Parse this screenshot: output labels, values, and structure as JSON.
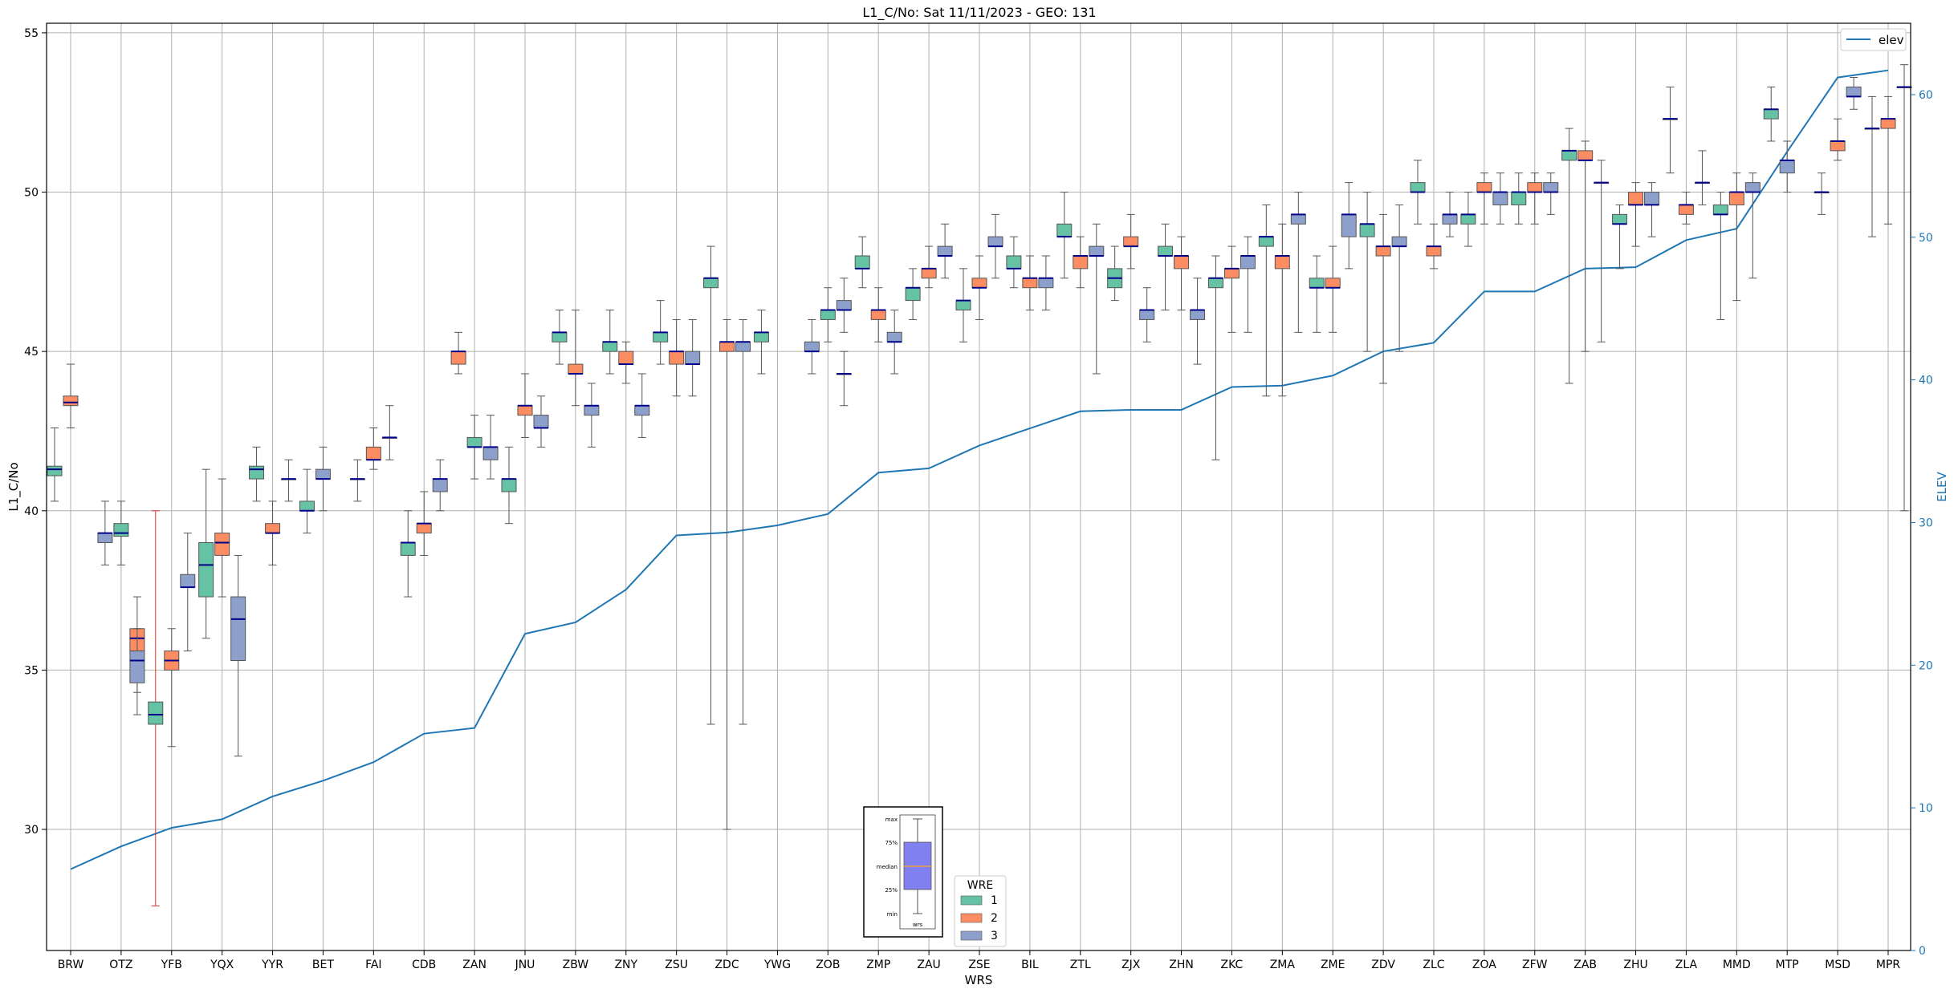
{
  "chart_data": {
    "type": "box",
    "title": "L1_C/No: Sat 11/11/2023 - GEO: 131",
    "xlabel": "WRS",
    "ylabel": "L1_C/No",
    "y2label": "ELEV",
    "ylim": [
      26.2,
      55.3
    ],
    "y2lim": [
      0,
      65
    ],
    "yticks": [
      30,
      35,
      40,
      45,
      50,
      55
    ],
    "y2ticks": [
      0,
      10,
      20,
      30,
      40,
      50,
      60
    ],
    "grid": true,
    "colors": {
      "1": "#66c2a5",
      "2": "#fc8d62",
      "3": "#8da0cb",
      "median": "#00008b",
      "elev": "#1f77b4",
      "whisker": "#555555",
      "outlier_whisker": "#e03030"
    },
    "categories": [
      "BRW",
      "OTZ",
      "YFB",
      "YQX",
      "YYR",
      "BET",
      "FAI",
      "CDB",
      "ZAN",
      "JNU",
      "ZBW",
      "ZNY",
      "ZSU",
      "ZDC",
      "YWG",
      "ZOB",
      "ZMP",
      "ZAU",
      "ZSE",
      "BIL",
      "ZTL",
      "ZJX",
      "ZHN",
      "ZKC",
      "ZMA",
      "ZME",
      "ZDV",
      "ZLC",
      "ZOA",
      "ZFW",
      "ZAB",
      "ZHU",
      "ZLA",
      "MMD",
      "MTP",
      "MSD",
      "MPR"
    ],
    "boxes": [
      {
        "wrs": "BRW",
        "wre": 1,
        "min": 40.3,
        "q1": 41.1,
        "median": 41.3,
        "q3": 41.4,
        "max": 42.6
      },
      {
        "wrs": "BRW",
        "wre": 2,
        "min": 42.6,
        "q1": 43.3,
        "median": 43.4,
        "q3": 43.6,
        "max": 44.6
      },
      {
        "wrs": "OTZ",
        "wre": 3,
        "min": 38.3,
        "q1": 39.0,
        "median": 39.3,
        "q3": 39.3,
        "max": 40.3
      },
      {
        "wrs": "OTZ",
        "wre": 1,
        "min": 38.3,
        "q1": 39.2,
        "median": 39.3,
        "q3": 39.6,
        "max": 40.3
      },
      {
        "wrs": "OTZ",
        "wre": 2,
        "min": 34.3,
        "q1": 35.6,
        "median": 36.0,
        "q3": 36.3,
        "max": 37.3
      },
      {
        "wrs": "OTZ",
        "wre": 3,
        "min": 33.6,
        "q1": 34.6,
        "median": 35.3,
        "q3": 35.6,
        "max": 36.3
      },
      {
        "wrs": "YFB",
        "wre": 1,
        "min": 27.6,
        "q1": 33.3,
        "median": 33.6,
        "q3": 34.0,
        "max": 40.0,
        "whisker": "outlier_whisker"
      },
      {
        "wrs": "YFB",
        "wre": 2,
        "min": 32.6,
        "q1": 35.0,
        "median": 35.3,
        "q3": 35.6,
        "max": 36.3
      },
      {
        "wrs": "YFB",
        "wre": 3,
        "min": 35.6,
        "q1": 37.6,
        "median": 37.6,
        "q3": 38.0,
        "max": 39.3
      },
      {
        "wrs": "YQX",
        "wre": 1,
        "min": 36.0,
        "q1": 37.3,
        "median": 38.3,
        "q3": 39.0,
        "max": 41.3
      },
      {
        "wrs": "YQX",
        "wre": 2,
        "min": 37.3,
        "q1": 38.6,
        "median": 39.0,
        "q3": 39.3,
        "max": 41.0
      },
      {
        "wrs": "YQX",
        "wre": 3,
        "min": 32.3,
        "q1": 35.3,
        "median": 36.6,
        "q3": 37.3,
        "max": 38.6
      },
      {
        "wrs": "YYR",
        "wre": 1,
        "min": 40.3,
        "q1": 41.0,
        "median": 41.3,
        "q3": 41.4,
        "max": 42.0
      },
      {
        "wrs": "YYR",
        "wre": 2,
        "min": 38.3,
        "q1": 39.3,
        "median": 39.3,
        "q3": 39.6,
        "max": 40.3
      },
      {
        "wrs": "YYR",
        "wre": 3,
        "min": 40.3,
        "q1": 41.0,
        "median": 41.0,
        "q3": 41.0,
        "max": 41.6
      },
      {
        "wrs": "BET",
        "wre": 1,
        "min": 39.3,
        "q1": 40.0,
        "median": 40.0,
        "q3": 40.3,
        "max": 41.3
      },
      {
        "wrs": "BET",
        "wre": 3,
        "min": 40.0,
        "q1": 41.0,
        "median": 41.0,
        "q3": 41.3,
        "max": 42.0
      },
      {
        "wrs": "FAI",
        "wre": 1,
        "min": 40.3,
        "q1": 41.0,
        "median": 41.0,
        "q3": 41.0,
        "max": 41.6
      },
      {
        "wrs": "FAI",
        "wre": 2,
        "min": 41.3,
        "q1": 41.6,
        "median": 41.6,
        "q3": 42.0,
        "max": 42.6
      },
      {
        "wrs": "FAI",
        "wre": 3,
        "min": 41.6,
        "q1": 42.3,
        "median": 42.3,
        "q3": 42.3,
        "max": 43.3
      },
      {
        "wrs": "CDB",
        "wre": 1,
        "min": 37.3,
        "q1": 38.6,
        "median": 39.0,
        "q3": 39.0,
        "max": 40.0
      },
      {
        "wrs": "CDB",
        "wre": 2,
        "min": 38.6,
        "q1": 39.3,
        "median": 39.6,
        "q3": 39.6,
        "max": 40.6
      },
      {
        "wrs": "CDB",
        "wre": 3,
        "min": 40.0,
        "q1": 40.6,
        "median": 41.0,
        "q3": 41.0,
        "max": 41.6
      },
      {
        "wrs": "ZAN",
        "wre": 2,
        "min": 44.3,
        "q1": 44.6,
        "median": 45.0,
        "q3": 45.0,
        "max": 45.6
      },
      {
        "wrs": "ZAN",
        "wre": 1,
        "min": 41.0,
        "q1": 42.0,
        "median": 42.0,
        "q3": 42.3,
        "max": 43.0
      },
      {
        "wrs": "ZAN",
        "wre": 3,
        "min": 41.0,
        "q1": 41.6,
        "median": 42.0,
        "q3": 42.0,
        "max": 43.0
      },
      {
        "wrs": "JNU",
        "wre": 1,
        "min": 39.6,
        "q1": 40.6,
        "median": 41.0,
        "q3": 41.0,
        "max": 42.0
      },
      {
        "wrs": "JNU",
        "wre": 2,
        "min": 42.3,
        "q1": 43.0,
        "median": 43.3,
        "q3": 43.3,
        "max": 44.3
      },
      {
        "wrs": "JNU",
        "wre": 3,
        "min": 42.0,
        "q1": 42.6,
        "median": 42.6,
        "q3": 43.0,
        "max": 43.6
      },
      {
        "wrs": "ZBW",
        "wre": 1,
        "min": 44.6,
        "q1": 45.3,
        "median": 45.6,
        "q3": 45.6,
        "max": 46.3
      },
      {
        "wrs": "ZBW",
        "wre": 2,
        "min": 43.3,
        "q1": 44.3,
        "median": 44.3,
        "q3": 44.6,
        "max": 46.3
      },
      {
        "wrs": "ZBW",
        "wre": 3,
        "min": 42.0,
        "q1": 43.0,
        "median": 43.3,
        "q3": 43.3,
        "max": 44.0
      },
      {
        "wrs": "ZNY",
        "wre": 1,
        "min": 44.3,
        "q1": 45.0,
        "median": 45.3,
        "q3": 45.3,
        "max": 46.3
      },
      {
        "wrs": "ZNY",
        "wre": 2,
        "min": 44.0,
        "q1": 44.6,
        "median": 44.6,
        "q3": 45.0,
        "max": 45.3
      },
      {
        "wrs": "ZNY",
        "wre": 3,
        "min": 42.3,
        "q1": 43.0,
        "median": 43.3,
        "q3": 43.3,
        "max": 44.3
      },
      {
        "wrs": "ZSU",
        "wre": 1,
        "min": 44.6,
        "q1": 45.3,
        "median": 45.6,
        "q3": 45.6,
        "max": 46.6
      },
      {
        "wrs": "ZSU",
        "wre": 2,
        "min": 43.6,
        "q1": 44.6,
        "median": 45.0,
        "q3": 45.0,
        "max": 46.0
      },
      {
        "wrs": "ZSU",
        "wre": 3,
        "min": 43.6,
        "q1": 44.6,
        "median": 44.6,
        "q3": 45.0,
        "max": 46.0
      },
      {
        "wrs": "ZDC",
        "wre": 1,
        "min": 33.3,
        "q1": 47.0,
        "median": 47.3,
        "q3": 47.3,
        "max": 48.3
      },
      {
        "wrs": "ZDC",
        "wre": 2,
        "min": 30.0,
        "q1": 45.0,
        "median": 45.3,
        "q3": 45.3,
        "max": 46.0
      },
      {
        "wrs": "ZDC",
        "wre": 3,
        "min": 33.3,
        "q1": 45.0,
        "median": 45.3,
        "q3": 45.3,
        "max": 46.0
      },
      {
        "wrs": "YWG",
        "wre": 1,
        "min": 44.3,
        "q1": 45.3,
        "median": 45.6,
        "q3": 45.6,
        "max": 46.3
      },
      {
        "wrs": "ZOB",
        "wre": 3,
        "min": 44.3,
        "q1": 45.0,
        "median": 45.0,
        "q3": 45.3,
        "max": 46.0
      },
      {
        "wrs": "ZOB",
        "wre": 1,
        "min": 45.3,
        "q1": 46.0,
        "median": 46.3,
        "q3": 46.3,
        "max": 47.0
      },
      {
        "wrs": "ZOB",
        "wre": 2,
        "min": 43.3,
        "q1": 44.3,
        "median": 44.3,
        "q3": 44.3,
        "max": 45.0
      },
      {
        "wrs": "ZOB",
        "wre": 3,
        "min": 45.6,
        "q1": 46.3,
        "median": 46.3,
        "q3": 46.6,
        "max": 47.3
      },
      {
        "wrs": "ZMP",
        "wre": 1,
        "min": 47.0,
        "q1": 47.6,
        "median": 47.6,
        "q3": 48.0,
        "max": 48.6
      },
      {
        "wrs": "ZMP",
        "wre": 2,
        "min": 45.3,
        "q1": 46.0,
        "median": 46.3,
        "q3": 46.3,
        "max": 47.0
      },
      {
        "wrs": "ZMP",
        "wre": 3,
        "min": 44.3,
        "q1": 45.3,
        "median": 45.3,
        "q3": 45.6,
        "max": 46.3
      },
      {
        "wrs": "ZAU",
        "wre": 1,
        "min": 46.0,
        "q1": 46.6,
        "median": 47.0,
        "q3": 47.0,
        "max": 47.6
      },
      {
        "wrs": "ZAU",
        "wre": 2,
        "min": 47.0,
        "q1": 47.3,
        "median": 47.6,
        "q3": 47.6,
        "max": 48.3
      },
      {
        "wrs": "ZAU",
        "wre": 3,
        "min": 47.3,
        "q1": 48.0,
        "median": 48.0,
        "q3": 48.3,
        "max": 49.0
      },
      {
        "wrs": "ZSE",
        "wre": 1,
        "min": 45.3,
        "q1": 46.3,
        "median": 46.6,
        "q3": 46.6,
        "max": 47.6
      },
      {
        "wrs": "ZSE",
        "wre": 2,
        "min": 46.0,
        "q1": 47.0,
        "median": 47.0,
        "q3": 47.3,
        "max": 48.0
      },
      {
        "wrs": "ZSE",
        "wre": 3,
        "min": 47.3,
        "q1": 48.3,
        "median": 48.3,
        "q3": 48.6,
        "max": 49.3
      },
      {
        "wrs": "BIL",
        "wre": 1,
        "min": 47.0,
        "q1": 47.6,
        "median": 47.6,
        "q3": 48.0,
        "max": 48.6
      },
      {
        "wrs": "BIL",
        "wre": 2,
        "min": 46.3,
        "q1": 47.0,
        "median": 47.3,
        "q3": 47.3,
        "max": 48.0
      },
      {
        "wrs": "BIL",
        "wre": 3,
        "min": 46.3,
        "q1": 47.0,
        "median": 47.3,
        "q3": 47.3,
        "max": 48.0
      },
      {
        "wrs": "ZTL",
        "wre": 1,
        "min": 47.3,
        "q1": 48.6,
        "median": 48.6,
        "q3": 49.0,
        "max": 50.0
      },
      {
        "wrs": "ZTL",
        "wre": 2,
        "min": 47.0,
        "q1": 47.6,
        "median": 48.0,
        "q3": 48.0,
        "max": 48.6
      },
      {
        "wrs": "ZTL",
        "wre": 3,
        "min": 44.3,
        "q1": 48.0,
        "median": 48.0,
        "q3": 48.3,
        "max": 49.0
      },
      {
        "wrs": "ZJX",
        "wre": 1,
        "min": 46.6,
        "q1": 47.0,
        "median": 47.3,
        "q3": 47.6,
        "max": 48.3
      },
      {
        "wrs": "ZJX",
        "wre": 2,
        "min": 47.6,
        "q1": 48.3,
        "median": 48.3,
        "q3": 48.6,
        "max": 49.3
      },
      {
        "wrs": "ZJX",
        "wre": 3,
        "min": 45.3,
        "q1": 46.0,
        "median": 46.3,
        "q3": 46.3,
        "max": 47.0
      },
      {
        "wrs": "ZHN",
        "wre": 1,
        "min": 46.3,
        "q1": 48.0,
        "median": 48.0,
        "q3": 48.3,
        "max": 49.0
      },
      {
        "wrs": "ZHN",
        "wre": 2,
        "min": 46.3,
        "q1": 47.6,
        "median": 48.0,
        "q3": 48.0,
        "max": 48.6
      },
      {
        "wrs": "ZHN",
        "wre": 3,
        "min": 44.6,
        "q1": 46.0,
        "median": 46.3,
        "q3": 46.3,
        "max": 47.3
      },
      {
        "wrs": "ZKC",
        "wre": 1,
        "min": 41.6,
        "q1": 47.0,
        "median": 47.3,
        "q3": 47.3,
        "max": 48.0
      },
      {
        "wrs": "ZKC",
        "wre": 2,
        "min": 45.6,
        "q1": 47.3,
        "median": 47.6,
        "q3": 47.6,
        "max": 48.3
      },
      {
        "wrs": "ZKC",
        "wre": 3,
        "min": 45.6,
        "q1": 47.6,
        "median": 48.0,
        "q3": 48.0,
        "max": 48.6
      },
      {
        "wrs": "ZMA",
        "wre": 1,
        "min": 43.6,
        "q1": 48.3,
        "median": 48.6,
        "q3": 48.6,
        "max": 49.6
      },
      {
        "wrs": "ZMA",
        "wre": 2,
        "min": 43.6,
        "q1": 47.6,
        "median": 48.0,
        "q3": 48.0,
        "max": 49.0
      },
      {
        "wrs": "ZMA",
        "wre": 3,
        "min": 45.6,
        "q1": 49.0,
        "median": 49.3,
        "q3": 49.3,
        "max": 50.0
      },
      {
        "wrs": "ZME",
        "wre": 1,
        "min": 45.6,
        "q1": 47.0,
        "median": 47.0,
        "q3": 47.3,
        "max": 48.0
      },
      {
        "wrs": "ZME",
        "wre": 2,
        "min": 45.6,
        "q1": 47.0,
        "median": 47.0,
        "q3": 47.3,
        "max": 48.3
      },
      {
        "wrs": "ZME",
        "wre": 3,
        "min": 47.6,
        "q1": 48.6,
        "median": 49.3,
        "q3": 49.3,
        "max": 50.3
      },
      {
        "wrs": "ZDV",
        "wre": 1,
        "min": 45.0,
        "q1": 48.6,
        "median": 49.0,
        "q3": 49.0,
        "max": 50.0
      },
      {
        "wrs": "ZDV",
        "wre": 2,
        "min": 44.0,
        "q1": 48.0,
        "median": 48.3,
        "q3": 48.3,
        "max": 49.3
      },
      {
        "wrs": "ZDV",
        "wre": 3,
        "min": 45.0,
        "q1": 48.3,
        "median": 48.3,
        "q3": 48.6,
        "max": 49.6
      },
      {
        "wrs": "ZLC",
        "wre": 1,
        "min": 49.0,
        "q1": 50.0,
        "median": 50.0,
        "q3": 50.3,
        "max": 51.0
      },
      {
        "wrs": "ZLC",
        "wre": 2,
        "min": 47.6,
        "q1": 48.0,
        "median": 48.3,
        "q3": 48.3,
        "max": 49.0
      },
      {
        "wrs": "ZLC",
        "wre": 3,
        "min": 48.6,
        "q1": 49.0,
        "median": 49.3,
        "q3": 49.3,
        "max": 50.0
      },
      {
        "wrs": "ZOA",
        "wre": 1,
        "min": 48.3,
        "q1": 49.0,
        "median": 49.3,
        "q3": 49.3,
        "max": 50.0
      },
      {
        "wrs": "ZOA",
        "wre": 2,
        "min": 49.0,
        "q1": 50.0,
        "median": 50.0,
        "q3": 50.3,
        "max": 50.6
      },
      {
        "wrs": "ZOA",
        "wre": 3,
        "min": 49.0,
        "q1": 49.6,
        "median": 50.0,
        "q3": 50.0,
        "max": 50.6
      },
      {
        "wrs": "ZFW",
        "wre": 1,
        "min": 49.0,
        "q1": 49.6,
        "median": 50.0,
        "q3": 50.0,
        "max": 50.6
      },
      {
        "wrs": "ZFW",
        "wre": 2,
        "min": 49.0,
        "q1": 50.0,
        "median": 50.0,
        "q3": 50.3,
        "max": 50.6
      },
      {
        "wrs": "ZFW",
        "wre": 3,
        "min": 49.3,
        "q1": 50.0,
        "median": 50.0,
        "q3": 50.3,
        "max": 50.6
      },
      {
        "wrs": "ZAB",
        "wre": 1,
        "min": 44.0,
        "q1": 51.0,
        "median": 51.3,
        "q3": 51.3,
        "max": 52.0
      },
      {
        "wrs": "ZAB",
        "wre": 2,
        "min": 45.0,
        "q1": 51.0,
        "median": 51.0,
        "q3": 51.3,
        "max": 51.6
      },
      {
        "wrs": "ZAB",
        "wre": 3,
        "min": 45.3,
        "q1": 50.3,
        "median": 50.3,
        "q3": 50.3,
        "max": 51.0
      },
      {
        "wrs": "ZHU",
        "wre": 1,
        "min": 47.6,
        "q1": 49.0,
        "median": 49.0,
        "q3": 49.3,
        "max": 49.6
      },
      {
        "wrs": "ZHU",
        "wre": 2,
        "min": 48.3,
        "q1": 49.6,
        "median": 49.6,
        "q3": 50.0,
        "max": 50.3
      },
      {
        "wrs": "ZHU",
        "wre": 3,
        "min": 48.6,
        "q1": 49.6,
        "median": 49.6,
        "q3": 50.0,
        "max": 50.3
      },
      {
        "wrs": "ZLA",
        "wre": 3,
        "min": 50.6,
        "q1": 52.3,
        "median": 52.3,
        "q3": 52.3,
        "max": 53.3
      },
      {
        "wrs": "ZLA",
        "wre": 2,
        "min": 49.0,
        "q1": 49.3,
        "median": 49.6,
        "q3": 49.6,
        "max": 50.0
      },
      {
        "wrs": "ZLA",
        "wre": 3,
        "min": 49.6,
        "q1": 50.3,
        "median": 50.3,
        "q3": 50.3,
        "max": 51.3
      },
      {
        "wrs": "MMD",
        "wre": 1,
        "min": 46.0,
        "q1": 49.3,
        "median": 49.3,
        "q3": 49.6,
        "max": 50.0
      },
      {
        "wrs": "MMD",
        "wre": 2,
        "min": 46.6,
        "q1": 49.6,
        "median": 50.0,
        "q3": 50.0,
        "max": 50.6
      },
      {
        "wrs": "MMD",
        "wre": 3,
        "min": 47.3,
        "q1": 50.0,
        "median": 50.0,
        "q3": 50.3,
        "max": 50.6
      },
      {
        "wrs": "MTP",
        "wre": 1,
        "min": 51.6,
        "q1": 52.3,
        "median": 52.6,
        "q3": 52.6,
        "max": 53.3
      },
      {
        "wrs": "MTP",
        "wre": 3,
        "min": 50.0,
        "q1": 50.6,
        "median": 51.0,
        "q3": 51.0,
        "max": 51.6
      },
      {
        "wrs": "MSD",
        "wre": 3,
        "min": 49.3,
        "q1": 50.0,
        "median": 50.0,
        "q3": 50.0,
        "max": 50.6
      },
      {
        "wrs": "MSD",
        "wre": 2,
        "min": 51.0,
        "q1": 51.3,
        "median": 51.6,
        "q3": 51.6,
        "max": 52.3
      },
      {
        "wrs": "MSD",
        "wre": 3,
        "min": 52.6,
        "q1": 53.0,
        "median": 53.0,
        "q3": 53.3,
        "max": 53.6
      },
      {
        "wrs": "MPR",
        "wre": 3,
        "min": 48.6,
        "q1": 52.0,
        "median": 52.0,
        "q3": 52.0,
        "max": 53.0
      },
      {
        "wrs": "MPR",
        "wre": 2,
        "min": 49.0,
        "q1": 52.0,
        "median": 52.3,
        "q3": 52.3,
        "max": 53.0
      },
      {
        "wrs": "MPR",
        "wre": 3,
        "min": 40.0,
        "q1": 53.3,
        "median": 53.3,
        "q3": 53.3,
        "max": 54.0
      }
    ],
    "line_series": {
      "name": "elev",
      "axis": "right",
      "values": [
        5.7,
        7.3,
        8.6,
        9.2,
        10.8,
        11.9,
        13.2,
        15.2,
        15.6,
        22.2,
        23.0,
        25.3,
        29.1,
        29.3,
        29.8,
        30.6,
        33.5,
        33.8,
        35.4,
        36.6,
        37.8,
        37.9,
        37.9,
        39.5,
        39.6,
        40.3,
        42.0,
        42.6,
        46.2,
        46.2,
        47.8,
        47.9,
        49.8,
        50.6,
        56.0,
        61.2,
        61.7
      ]
    },
    "legend_line": {
      "label": "elev",
      "position": "upper-right"
    },
    "legend_wre": {
      "title": "WRE",
      "entries": [
        "1",
        "2",
        "3"
      ],
      "position": "lower-center"
    },
    "inset": {
      "labels": [
        "max",
        "75%",
        "median",
        "25%",
        "min"
      ],
      "xlabel": "wrs",
      "box_color": "#8080f0",
      "median_color": "#e8a040"
    }
  }
}
